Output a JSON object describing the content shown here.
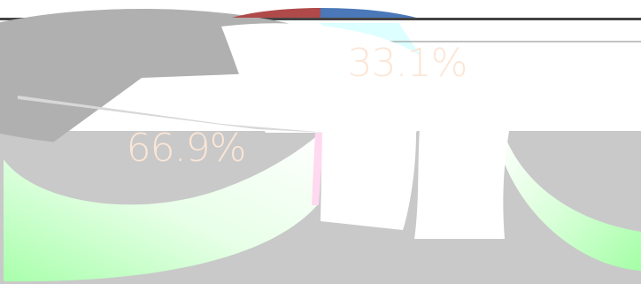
{
  "chart_data": {
    "type": "pie",
    "title": "",
    "categories": [
      "",
      ""
    ],
    "values": [
      66.9,
      33.1
    ],
    "data_labels": [
      "66.9%",
      "33.1%"
    ],
    "legend": "none",
    "colors": {
      "slice_a": "#b0b0b0",
      "slice_b": "#ffffff",
      "bottom_band": "#c9c9c9",
      "green_highlight": "#b6ffb8",
      "cyan_highlight": "#cfffff",
      "pink_highlight": "#ffd9ef",
      "top_cap_red": "#b04a4a",
      "top_cap_blue": "#4a78b8",
      "label_text": "#fce6d6"
    }
  }
}
